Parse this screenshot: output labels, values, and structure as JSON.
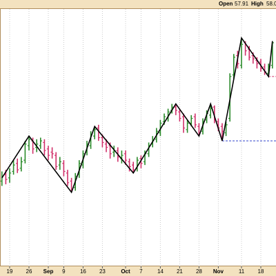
{
  "chart_data": {
    "type": "ohlc",
    "header": {
      "open_label": "Open",
      "open_value": "57.91",
      "high_label": "High",
      "high_value": "58.0"
    },
    "categories": [
      null,
      null,
      "19",
      null,
      null,
      null,
      null,
      "26",
      null,
      null,
      null,
      null,
      "Sep",
      null,
      null,
      null,
      "9",
      null,
      null,
      null,
      null,
      "16",
      null,
      null,
      null,
      null,
      "23",
      null,
      null,
      null,
      null,
      null,
      "Oct",
      null,
      null,
      null,
      "7",
      null,
      null,
      null,
      null,
      "14",
      null,
      null,
      null,
      null,
      "21",
      null,
      null,
      null,
      null,
      "28",
      null,
      null,
      null,
      null,
      "Nov",
      null,
      null,
      null,
      null,
      null,
      "11",
      null,
      null,
      null,
      null,
      "18",
      null,
      null,
      null
    ],
    "open": [
      49.3,
      49.7,
      49.5,
      49.9,
      50.4,
      50.1,
      50.6,
      51.5,
      51.8,
      51.4,
      51.5,
      51.7,
      51.3,
      51.1,
      50.9,
      50.3,
      50.4,
      49.8,
      49.3,
      48.9,
      49.7,
      50.3,
      51.1,
      51.5,
      52.1,
      52.6,
      52.0,
      51.6,
      51.5,
      51.1,
      51.2,
      50.7,
      51.0,
      50.5,
      50.3,
      50.1,
      50.7,
      50.5,
      51.0,
      51.6,
      51.9,
      52.3,
      53.0,
      53.2,
      53.7,
      53.9,
      53.6,
      53.3,
      52.5,
      52.9,
      53.3,
      52.7,
      52.4,
      53.1,
      53.4,
      53.9,
      53.0,
      52.7,
      52.3,
      53.2,
      55.9,
      57.1,
      56.5,
      57.9,
      57.5,
      57.1,
      56.8,
      56.7,
      56.4,
      56.0,
      56.5
    ],
    "high": [
      49.9,
      50.0,
      50.1,
      50.6,
      50.7,
      50.8,
      51.8,
      52.1,
      52.0,
      51.9,
      52.0,
      51.9,
      51.5,
      51.4,
      51.1,
      50.8,
      50.6,
      50.0,
      49.5,
      49.8,
      50.6,
      51.2,
      51.8,
      52.4,
      52.7,
      52.8,
      52.2,
      51.9,
      51.7,
      51.5,
      51.4,
      51.2,
      51.2,
      50.7,
      50.5,
      50.8,
      50.9,
      51.2,
      51.7,
      52.1,
      52.6,
      53.1,
      53.5,
      53.8,
      54.1,
      54.1,
      53.8,
      53.5,
      53.1,
      53.4,
      53.5,
      52.9,
      53.2,
      53.7,
      54.1,
      54.0,
      53.2,
      52.9,
      53.0,
      56.0,
      57.2,
      57.4,
      58.2,
      58.0,
      57.7,
      57.3,
      57.0,
      56.9,
      56.6,
      56.6,
      58.0
    ],
    "low": [
      49.0,
      49.1,
      49.2,
      49.7,
      49.8,
      49.9,
      50.4,
      51.2,
      51.0,
      51.1,
      51.3,
      50.9,
      50.6,
      50.7,
      50.0,
      50.0,
      49.6,
      49.0,
      48.6,
      48.7,
      49.5,
      50.1,
      50.9,
      51.3,
      51.9,
      51.8,
      51.4,
      51.1,
      50.7,
      50.8,
      50.5,
      50.4,
      50.3,
      49.9,
      49.8,
      49.9,
      50.1,
      50.3,
      50.8,
      51.4,
      51.7,
      52.1,
      52.8,
      53.0,
      53.5,
      53.4,
      53.0,
      52.3,
      52.3,
      52.7,
      52.6,
      52.1,
      52.2,
      52.9,
      53.2,
      52.9,
      52.4,
      51.8,
      52.1,
      53.0,
      55.6,
      56.3,
      56.3,
      57.1,
      56.8,
      56.6,
      56.3,
      56.1,
      55.9,
      55.8,
      56.3
    ],
    "close": [
      49.6,
      49.4,
      49.8,
      50.3,
      50.0,
      50.5,
      51.6,
      51.9,
      51.3,
      51.6,
      51.8,
      51.2,
      50.9,
      51.0,
      50.2,
      50.5,
      49.9,
      49.2,
      48.8,
      49.6,
      50.4,
      51.0,
      51.6,
      52.2,
      52.5,
      52.0,
      51.7,
      51.4,
      51.0,
      51.2,
      50.8,
      50.9,
      50.6,
      50.2,
      50.0,
      50.6,
      50.4,
      51.0,
      51.5,
      51.8,
      52.4,
      52.9,
      53.3,
      53.6,
      53.9,
      53.7,
      53.2,
      52.6,
      52.9,
      53.2,
      52.8,
      52.3,
      53.0,
      53.5,
      53.8,
      53.1,
      52.6,
      52.4,
      52.8,
      55.8,
      57.0,
      56.6,
      57.8,
      57.4,
      57.0,
      56.9,
      56.6,
      56.3,
      56.1,
      56.4,
      57.9
    ],
    "up_color": "#2a8a2a",
    "down_color": "#d0306a",
    "zigzag": {
      "x": [
        0,
        7,
        18,
        24,
        34,
        45,
        51,
        54,
        57,
        62,
        69,
        70
      ],
      "values": [
        49.5,
        52.1,
        48.6,
        52.7,
        49.8,
        54.1,
        52.1,
        54.1,
        51.8,
        58.2,
        55.8,
        58.0
      ],
      "color": "#000000"
    },
    "levels": [
      {
        "value": 51.8,
        "start": 57,
        "color": "#3344cc"
      },
      {
        "value": 55.8,
        "start": 69,
        "color": "#d0306a"
      }
    ],
    "ylim": [
      44,
      60
    ],
    "grid": true
  }
}
